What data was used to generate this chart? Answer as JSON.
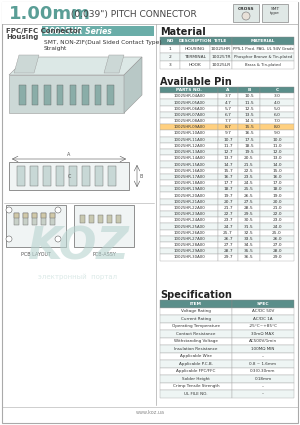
{
  "title_large": "1.00mm",
  "title_small": " (0.039\") PITCH CONNECTOR",
  "bg_color": "#ffffff",
  "teal_color": "#5a9e96",
  "header_bg_teal": "#6aada8",
  "series_name": "10025HR Series",
  "series_desc1": "SMT, NON-ZIF(Dual Sided Contact Type)",
  "series_desc2": "Straight",
  "connector_type": "FPC/FFC Connector",
  "connector_type2": "Housing",
  "material_headers": [
    "NO",
    "DESCRIPTION",
    "TITLE",
    "MATERIAL"
  ],
  "material_rows": [
    [
      "1",
      "HOUSING",
      "10025HR",
      "PPS,1 Prod. PAG, UL 94V Grade"
    ],
    [
      "2",
      "TERMINAL",
      "10025TR",
      "Phosphor Bronze & Tin-plated"
    ],
    [
      "3",
      "HOOK",
      "10025LR",
      "Brass & Tin-plated"
    ]
  ],
  "pin_headers": [
    "PARTS NO.",
    "A",
    "B",
    "C"
  ],
  "pin_rows": [
    [
      "10025HR-04A00",
      "3.7",
      "10.5",
      "3.0"
    ],
    [
      "10025HR-05A00",
      "4.7",
      "11.5",
      "4.0"
    ],
    [
      "10025HR-06A00",
      "5.7",
      "12.5",
      "5.0"
    ],
    [
      "10025HR-07A00",
      "6.7",
      "13.5",
      "6.0"
    ],
    [
      "10025HR-08A00",
      "7.7",
      "14.5",
      "7.0"
    ],
    [
      "10025HR-09A00",
      "8.7",
      "15.5",
      "8.0"
    ],
    [
      "10025HR-10A00",
      "9.7",
      "16.5",
      "9.0"
    ],
    [
      "10025HR-11A00",
      "10.7",
      "17.5",
      "10.0"
    ],
    [
      "10025HR-12A00",
      "11.7",
      "18.5",
      "11.0"
    ],
    [
      "10025HR-13A00",
      "12.7",
      "19.5",
      "12.0"
    ],
    [
      "10025HR-14A00",
      "13.7",
      "20.5",
      "13.0"
    ],
    [
      "10025HR-15A00",
      "14.7",
      "21.5",
      "14.0"
    ],
    [
      "10025HR-16A00",
      "15.7",
      "22.5",
      "15.0"
    ],
    [
      "10025HR-17A00",
      "16.7",
      "23.5",
      "16.0"
    ],
    [
      "10025HR-18A00",
      "17.7",
      "24.5",
      "17.0"
    ],
    [
      "10025HR-19A00",
      "18.7",
      "25.5",
      "18.0"
    ],
    [
      "10025HR-20A00",
      "19.7",
      "26.5",
      "19.0"
    ],
    [
      "10025HR-21A00",
      "20.7",
      "27.5",
      "20.0"
    ],
    [
      "10025HR-22A00",
      "21.7",
      "28.5",
      "21.0"
    ],
    [
      "10025HR-23A00",
      "22.7",
      "29.5",
      "22.0"
    ],
    [
      "10025HR-24A00",
      "23.7",
      "30.5",
      "23.0"
    ],
    [
      "10025HR-25A00",
      "24.7",
      "31.5",
      "24.0"
    ],
    [
      "10025HR-26A00",
      "25.7",
      "32.5",
      "25.0"
    ],
    [
      "10025HR-27A00",
      "26.7",
      "33.5",
      "26.0"
    ],
    [
      "10025HR-28A00",
      "27.7",
      "34.5",
      "27.0"
    ],
    [
      "10025HR-29A00",
      "28.7",
      "35.5",
      "28.0"
    ],
    [
      "10025HR-30A00",
      "29.7",
      "36.5",
      "29.0"
    ]
  ],
  "spec_title": "Specification",
  "spec_headers": [
    "ITEM",
    "SPEC"
  ],
  "spec_rows": [
    [
      "Voltage Rating",
      "AC/DC 50V"
    ],
    [
      "Current Rating",
      "AC/DC 1A"
    ],
    [
      "Operating Temperature",
      "-25°C~+85°C"
    ],
    [
      "Contact Resistance",
      "30mΩ MAX"
    ],
    [
      "Withstanding Voltage",
      "AC500V/1min"
    ],
    [
      "Insulation Resistance",
      "100MΩ MIN"
    ],
    [
      "Applicable Wire",
      "--"
    ],
    [
      "Applicable P.C.B.",
      "0.8 ~ 1.6mm"
    ],
    [
      "Applicable FPC/FFC",
      "0.3(0.30mm"
    ],
    [
      "Solder Height",
      "0.18mm"
    ],
    [
      "Crimp Tensile Strength",
      "--"
    ],
    [
      "UL FILE NO.",
      "--"
    ]
  ],
  "watermark_text": "KOZ",
  "watermark_subtext": "электронный  портал",
  "watermark_color": "#b8d4d0",
  "footer_text": "PCB LAYOUT",
  "footer_text2": "PCB-ASSY"
}
